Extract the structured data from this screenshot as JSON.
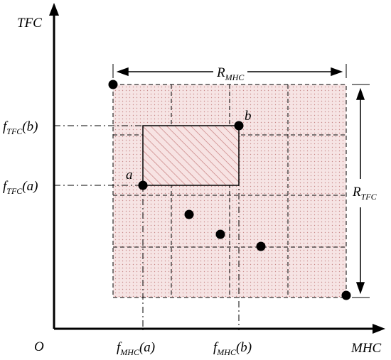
{
  "axes": {
    "x_label": "MHC",
    "y_label": "TFC",
    "origin_label": "O"
  },
  "ticks": {
    "x_a": {
      "base": "f",
      "sub": "MHC",
      "arg": "(a)"
    },
    "x_b": {
      "base": "f",
      "sub": "MHC",
      "arg": "(b)"
    },
    "y_a": {
      "base": "f",
      "sub": "TFC",
      "arg": "(a)"
    },
    "y_b": {
      "base": "f",
      "sub": "TFC",
      "arg": "(b)"
    }
  },
  "ranges": {
    "mhc": {
      "base": "R",
      "sub": "MHC"
    },
    "tfc": {
      "base": "R",
      "sub": "TFC"
    }
  },
  "points": {
    "a": "a",
    "b": "b"
  },
  "colors": {
    "axis": "#000000",
    "grid_fill": "#f4e1e1",
    "dot_pattern": "#c98b8b",
    "hatch": "#c07070",
    "dominated_fill": "#f6dede"
  }
}
